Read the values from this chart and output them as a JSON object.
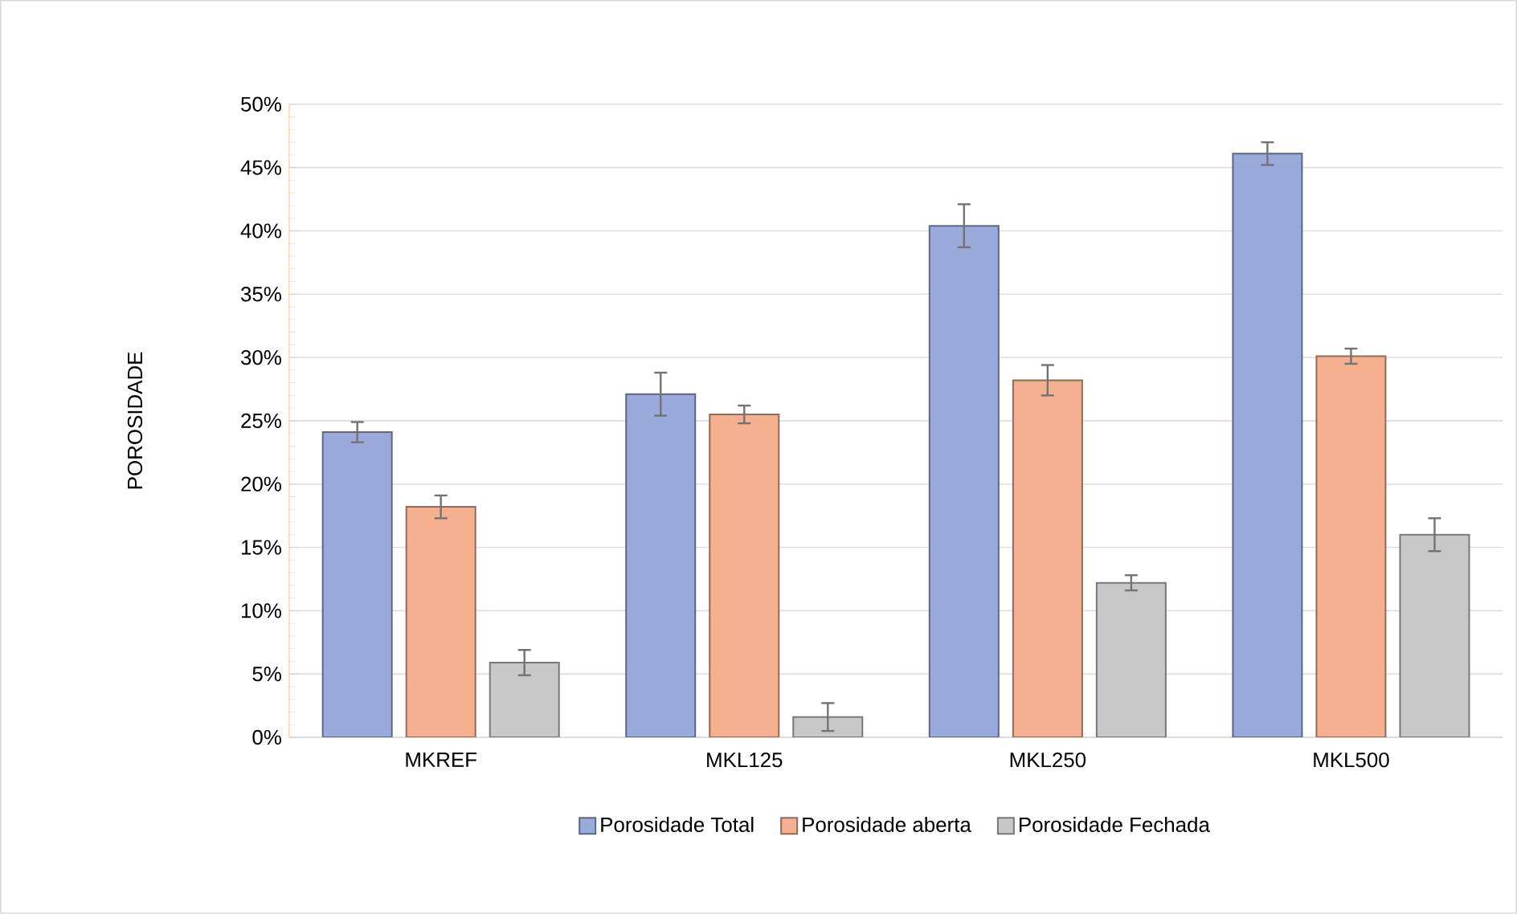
{
  "chart_data": {
    "type": "bar",
    "ylabel": "POROSIDADE",
    "categories": [
      "MKREF",
      "MKL125",
      "MKL250",
      "MKL500"
    ],
    "series": [
      {
        "name": "Porosidade Total",
        "color": "#9aabdb",
        "values": [
          24.1,
          27.1,
          40.4,
          46.1
        ],
        "errors": [
          0.8,
          1.7,
          1.7,
          0.9
        ]
      },
      {
        "name": "Porosidade aberta",
        "color": "#f5b090",
        "values": [
          18.2,
          25.5,
          28.2,
          30.1
        ],
        "errors": [
          0.9,
          0.7,
          1.2,
          0.6
        ]
      },
      {
        "name": "Porosidade Fechada",
        "color": "#c8c8c8",
        "values": [
          5.9,
          1.6,
          12.2,
          16.0
        ],
        "errors": [
          1.0,
          1.1,
          0.6,
          1.3
        ]
      }
    ],
    "ylim": [
      0,
      50
    ],
    "yticks": [
      {
        "value": 0,
        "label": "0%"
      },
      {
        "value": 5,
        "label": "5%"
      },
      {
        "value": 10,
        "label": "10%"
      },
      {
        "value": 15,
        "label": "15%"
      },
      {
        "value": 20,
        "label": "20%"
      },
      {
        "value": 25,
        "label": "25%"
      },
      {
        "value": 30,
        "label": "30%"
      },
      {
        "value": 35,
        "label": "35%"
      },
      {
        "value": 40,
        "label": "40%"
      },
      {
        "value": 45,
        "label": "45%"
      },
      {
        "value": 50,
        "label": "50%"
      }
    ],
    "grid": "y",
    "legend": "bottom"
  }
}
